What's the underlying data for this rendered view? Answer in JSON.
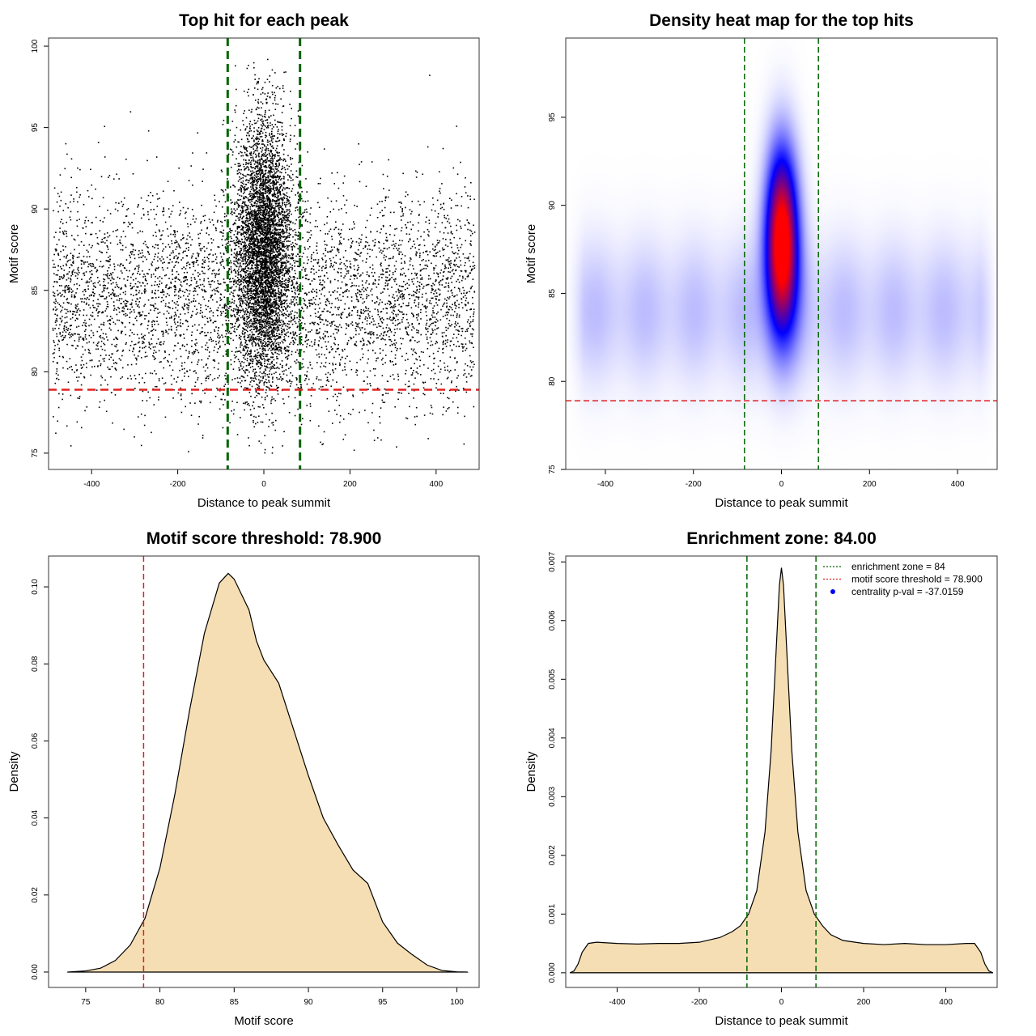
{
  "chart_data": [
    {
      "type": "scatter",
      "title": "Top hit for each peak",
      "xlabel": "Distance to peak summit",
      "ylabel": "Motif score",
      "xlim": [
        -500,
        500
      ],
      "ylim": [
        74,
        100.5
      ],
      "xticks": [
        -400,
        -200,
        0,
        200,
        400
      ],
      "yticks": [
        75,
        80,
        85,
        90,
        95,
        100
      ],
      "vlines": [
        -84,
        84
      ],
      "hline": 78.9,
      "line_colors": {
        "vline": "#006400",
        "hline": "#e02020"
      },
      "point_color": "#000000",
      "point_groups": [
        {
          "x_range": [
            -490,
            490
          ],
          "y_mean": 84.5,
          "y_sd": 3.2,
          "count": 5000,
          "shape": "uniform"
        },
        {
          "x_range": [
            -100,
            100
          ],
          "y_mean": 87.5,
          "y_sd": 4.0,
          "count": 5000,
          "shape": "centered"
        }
      ]
    },
    {
      "type": "heatmap",
      "title": "Density heat map for the top hits",
      "xlabel": "Distance to peak summit",
      "ylabel": "Motif score",
      "xlim": [
        -490,
        490
      ],
      "ylim": [
        75,
        99.5
      ],
      "xticks": [
        -400,
        -200,
        0,
        200,
        400
      ],
      "yticks": [
        75,
        80,
        85,
        90,
        95
      ],
      "vlines": [
        -84,
        84
      ],
      "hline": 78.9,
      "colorscale": [
        "#ffffff",
        "#0000ff",
        "#ff0000"
      ],
      "background_component": {
        "y_mean": 84.0,
        "y_sd": 3.0
      },
      "center_component": {
        "x_mean": 0,
        "x_sd": 26,
        "y_mean": 88.0,
        "y_sd": 3.6,
        "peak_ratio": 7.5
      }
    },
    {
      "type": "area",
      "title": "Motif score threshold: 78.900",
      "xlabel": "Motif score",
      "ylabel": "Density",
      "xlim": [
        72.5,
        101.5
      ],
      "ylim": [
        -0.004,
        0.108
      ],
      "xticks": [
        75,
        80,
        85,
        90,
        95,
        100
      ],
      "yticks": [
        0.0,
        0.02,
        0.04,
        0.06,
        0.08,
        0.1
      ],
      "ytick_labels": [
        "0.00",
        "0.02",
        "0.04",
        "0.06",
        "0.08",
        "0.10"
      ],
      "vlines": [
        78.9
      ],
      "fill_color": "#f5deb3",
      "x": [
        73.8,
        75,
        76,
        77,
        78,
        79,
        80,
        81,
        82,
        83,
        84,
        84.6,
        85,
        86,
        86.5,
        87,
        88,
        89,
        90,
        91,
        92,
        93,
        94,
        95,
        96,
        97,
        98,
        99,
        100,
        100.7
      ],
      "y": [
        0.0,
        0.0003,
        0.001,
        0.003,
        0.007,
        0.014,
        0.027,
        0.046,
        0.068,
        0.088,
        0.101,
        0.1035,
        0.102,
        0.094,
        0.086,
        0.081,
        0.075,
        0.063,
        0.051,
        0.04,
        0.033,
        0.0265,
        0.023,
        0.013,
        0.0075,
        0.0045,
        0.0018,
        0.0004,
        5e-05,
        0.0
      ]
    },
    {
      "type": "area",
      "title": "Enrichment zone: 84.00",
      "xlabel": "Distance to peak summit",
      "ylabel": "Density",
      "xlim": [
        -525,
        525
      ],
      "ylim": [
        -0.00025,
        0.0071
      ],
      "xticks": [
        -400,
        -200,
        0,
        200,
        400
      ],
      "yticks": [
        0.0,
        0.001,
        0.002,
        0.003,
        0.004,
        0.005,
        0.006,
        0.007
      ],
      "ytick_labels": [
        "0.000",
        "0.001",
        "0.002",
        "0.003",
        "0.004",
        "0.005",
        "0.006",
        "0.007"
      ],
      "vlines": [
        -84,
        84
      ],
      "fill_color": "#f5deb3",
      "x": [
        -515,
        -505,
        -495,
        -485,
        -470,
        -450,
        -400,
        -350,
        -300,
        -250,
        -200,
        -150,
        -120,
        -100,
        -80,
        -60,
        -40,
        -25,
        -15,
        -5,
        0,
        5,
        15,
        25,
        40,
        60,
        80,
        100,
        120,
        150,
        200,
        250,
        300,
        350,
        400,
        450,
        470,
        485,
        495,
        505,
        515
      ],
      "y": [
        0.0,
        3e-05,
        0.00015,
        0.00035,
        0.0005,
        0.00052,
        0.0005,
        0.00049,
        0.0005,
        0.0005,
        0.00052,
        0.0006,
        0.0007,
        0.0008,
        0.001,
        0.0014,
        0.0024,
        0.0038,
        0.0052,
        0.0066,
        0.0069,
        0.0066,
        0.0052,
        0.0038,
        0.0024,
        0.0014,
        0.001,
        0.0008,
        0.00065,
        0.00055,
        0.0005,
        0.00048,
        0.0005,
        0.00048,
        0.00048,
        0.0005,
        0.0005,
        0.00035,
        0.00015,
        3e-05,
        0.0
      ],
      "legend": [
        {
          "label": "enrichment zone = 84",
          "color": "#006400",
          "symbol": "dotted-line"
        },
        {
          "label": "motif score threshold = 78.900",
          "color": "#e02020",
          "symbol": "dotted-line"
        },
        {
          "label": "centrality p-val = -37.0159",
          "color": "#0000ff",
          "symbol": "point"
        }
      ],
      "legend_position": "top-right"
    }
  ]
}
